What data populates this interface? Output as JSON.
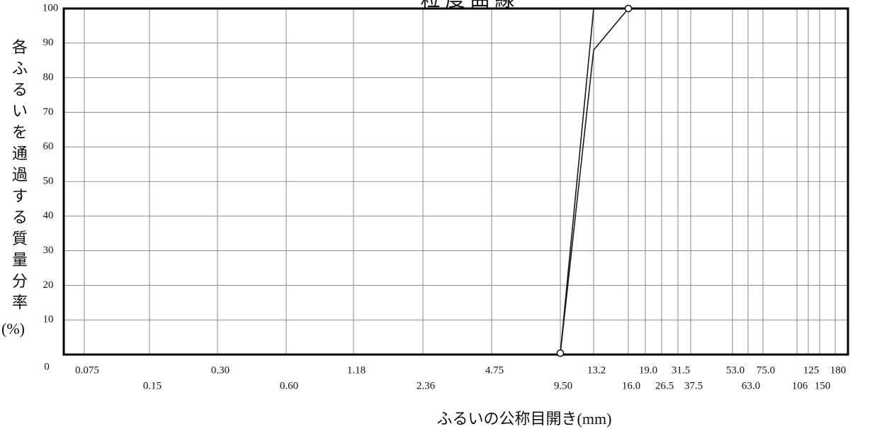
{
  "chart_data": {
    "type": "line",
    "title": "粒 度 曲 線",
    "xlabel": "ふるいの公称目開き(mm)",
    "ylabel": "各ふるいを通過する質量分率(%)",
    "y_unit_label": "(%)",
    "ylabel_chars": [
      "各",
      "ふ",
      "る",
      "い",
      "を",
      "通",
      "過",
      "す",
      "る",
      "質",
      "量",
      "分",
      "率"
    ],
    "ylim": [
      0,
      100
    ],
    "y_ticks": [
      "0",
      "10",
      "20",
      "30",
      "40",
      "50",
      "60",
      "70",
      "80",
      "90",
      "100"
    ],
    "x_ticks": [
      "0.075",
      "0.15",
      "0.30",
      "0.60",
      "1.18",
      "2.36",
      "4.75",
      "9.50",
      "13.2",
      "16.0",
      "19.0",
      "26.5",
      "31.5",
      "37.5",
      "53.0",
      "63.0",
      "75.0",
      "106",
      "125",
      "150",
      "180"
    ],
    "grid": true,
    "series": [
      {
        "x": [
          "9.50",
          "13.2",
          "16.0"
        ],
        "y": [
          0,
          100,
          100
        ]
      },
      {
        "x": [
          "9.50",
          "13.2",
          "16.0"
        ],
        "y": [
          0,
          88,
          100
        ]
      }
    ]
  },
  "colors": {
    "line": "#1a1a1a",
    "grid": "#8a8a8a",
    "frame": "#000000"
  }
}
